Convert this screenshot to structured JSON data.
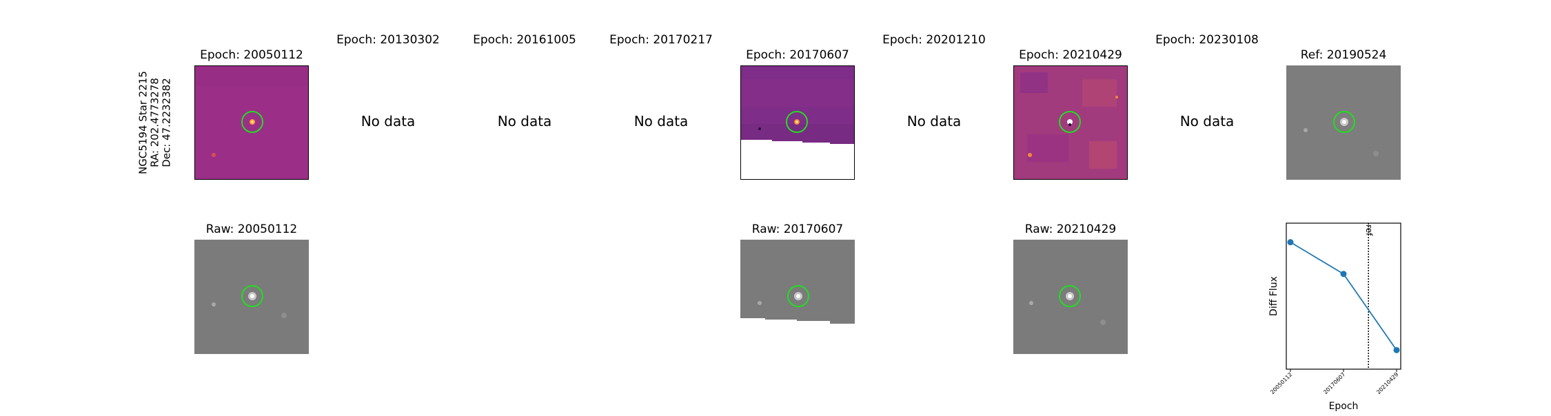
{
  "header": {
    "line1": "NGC5194 Star 2215",
    "line2": "RA: 202.4773278",
    "line3": "Dec: 47.2232382"
  },
  "epochs": [
    {
      "title": "Epoch: 20050112"
    },
    {
      "title": "Epoch: 20130302",
      "status": "No data"
    },
    {
      "title": "Epoch: 20161005",
      "status": "No data"
    },
    {
      "title": "Epoch: 20170217",
      "status": "No data"
    },
    {
      "title": "Epoch: 20170607"
    },
    {
      "title": "Epoch: 20201210",
      "status": "No data"
    },
    {
      "title": "Epoch: 20210429"
    },
    {
      "title": "Epoch: 20230108",
      "status": "No data"
    }
  ],
  "ref": {
    "title": "Ref: 20190524"
  },
  "raw": [
    {
      "title": "Raw: 20050112"
    },
    {
      "title": "Raw: 20170607"
    },
    {
      "title": "Raw: 20210429"
    }
  ],
  "colors": {
    "diff_bg": "#9a2f86",
    "diff_bg_dark": "#7a2c86",
    "raw_bg": "#7b7b7b",
    "marker_circle": "#22dd22",
    "series_line": "#1f77b4"
  },
  "chart_data": {
    "type": "line",
    "xlabel": "Epoch",
    "ylabel": "Diff Flux",
    "categories": [
      "20050112",
      "20170607",
      "20210429"
    ],
    "values": [
      0.85,
      0.6,
      0.0
    ],
    "ylim": [
      -0.15,
      1.0
    ],
    "ref_line": {
      "x_between": [
        "20170607",
        "20210429"
      ],
      "fraction": 0.47,
      "label": "ref",
      "style": "dotted"
    },
    "grid": false
  }
}
